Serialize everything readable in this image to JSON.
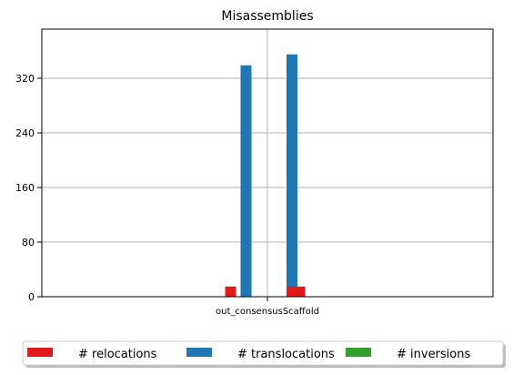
{
  "chart_data": {
    "type": "bar",
    "title": "Misassemblies",
    "xlabel": "",
    "ylabel": "",
    "categories": [
      "out_consensusScaffold"
    ],
    "ylim": [
      0,
      392
    ],
    "yticks": [
      0,
      80,
      160,
      240,
      320
    ],
    "grid": true,
    "legend_position": "bottom",
    "groups": [
      {
        "name": "group-1",
        "bars": [
          {
            "series": "# relocations",
            "value": 15
          },
          {
            "series": "# translocations",
            "value": 339
          }
        ]
      },
      {
        "name": "group-2",
        "bars": [
          {
            "series": "# translocations",
            "value": 355,
            "stack_base_series": "# relocations"
          },
          {
            "series": "# relocations",
            "value": 15
          }
        ]
      }
    ],
    "series": [
      {
        "name": "# relocations",
        "color": "#e31a1c"
      },
      {
        "name": "# translocations",
        "color": "#1f78b4"
      },
      {
        "name": "# inversions",
        "color": "#33a02c"
      }
    ]
  }
}
